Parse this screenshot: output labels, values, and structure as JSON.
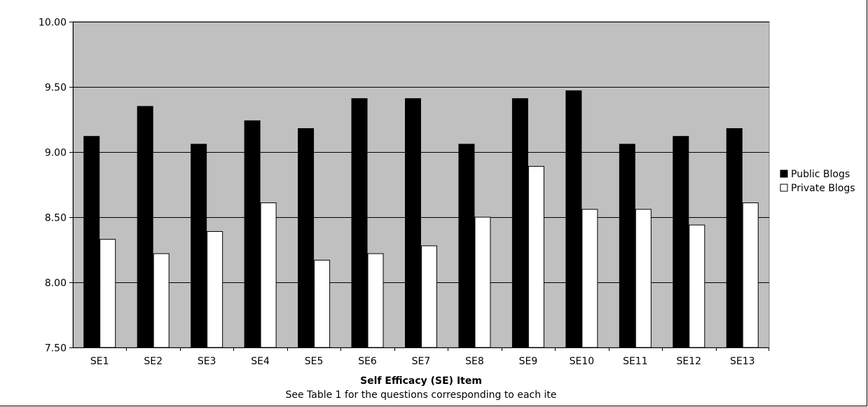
{
  "chart_data": {
    "type": "bar",
    "title": "",
    "xlabel": "Self Efficacy (SE) Item",
    "note": "See Table 1 for the questions corresponding to each ite",
    "ylabel": "",
    "ylim": [
      7.5,
      10.0
    ],
    "yticks": [
      "7.50",
      "8.00",
      "8.50",
      "9.00",
      "9.50",
      "10.00"
    ],
    "categories": [
      "SE1",
      "SE2",
      "SE3",
      "SE4",
      "SE5",
      "SE6",
      "SE7",
      "SE8",
      "SE9",
      "SE10",
      "SE11",
      "SE12",
      "SE13"
    ],
    "series": [
      {
        "name": "Public Blogs",
        "color": "#000000",
        "values": [
          9.12,
          9.35,
          9.06,
          9.24,
          9.18,
          9.41,
          9.41,
          9.06,
          9.41,
          9.47,
          9.06,
          9.12,
          9.18
        ]
      },
      {
        "name": "Private Blogs",
        "color": "#ffffff",
        "values": [
          8.33,
          8.22,
          8.39,
          8.61,
          8.17,
          8.22,
          8.28,
          8.5,
          8.89,
          8.56,
          8.56,
          8.44,
          8.61
        ]
      }
    ],
    "grid": true,
    "plot_background": "#c0c0c0",
    "legend_position": "right"
  }
}
